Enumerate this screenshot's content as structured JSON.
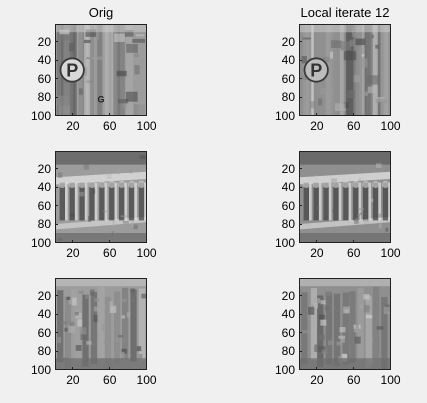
{
  "figure": {
    "background": "#f0f0f0",
    "colormap": "gray"
  },
  "chart_data": [
    {
      "type": "heatmap",
      "panel": "row1-left",
      "title": "Orig",
      "xticks": [
        20,
        60,
        100
      ],
      "yticks": [
        20,
        40,
        60,
        80,
        100
      ],
      "xlim": [
        1,
        100
      ],
      "ylim": [
        1,
        100
      ],
      "y_reversed": true,
      "scene": "street-sign",
      "signs": [
        "P",
        "G"
      ]
    },
    {
      "type": "heatmap",
      "panel": "row1-right",
      "title": "Local iterate 12",
      "xticks": [
        20,
        60,
        100
      ],
      "yticks": [
        20,
        40,
        60,
        80,
        100
      ],
      "xlim": [
        1,
        100
      ],
      "ylim": [
        1,
        100
      ],
      "y_reversed": true,
      "scene": "street-sign-filtered",
      "signs": [
        "P",
        ""
      ]
    },
    {
      "type": "heatmap",
      "panel": "row2-left",
      "title": "",
      "xticks": [
        20,
        60,
        100
      ],
      "yticks": [
        20,
        40,
        60,
        80,
        100
      ],
      "xlim": [
        1,
        100
      ],
      "ylim": [
        1,
        100
      ],
      "y_reversed": true,
      "scene": "arched-facade"
    },
    {
      "type": "heatmap",
      "panel": "row2-right",
      "title": "",
      "xticks": [
        20,
        60,
        100
      ],
      "yticks": [
        20,
        40,
        60,
        80,
        100
      ],
      "xlim": [
        1,
        100
      ],
      "ylim": [
        1,
        100
      ],
      "y_reversed": true,
      "scene": "arched-facade-filtered"
    },
    {
      "type": "heatmap",
      "panel": "row3-left",
      "title": "",
      "xticks": [
        20,
        60,
        100
      ],
      "yticks": [
        20,
        40,
        60,
        80,
        100
      ],
      "xlim": [
        1,
        100
      ],
      "ylim": [
        1,
        100
      ],
      "y_reversed": true,
      "scene": "street-buildings"
    },
    {
      "type": "heatmap",
      "panel": "row3-right",
      "title": "",
      "xticks": [
        20,
        60,
        100
      ],
      "yticks": [
        20,
        40,
        60,
        80,
        100
      ],
      "xlim": [
        1,
        100
      ],
      "ylim": [
        1,
        100
      ],
      "y_reversed": true,
      "scene": "street-buildings-filtered"
    }
  ]
}
